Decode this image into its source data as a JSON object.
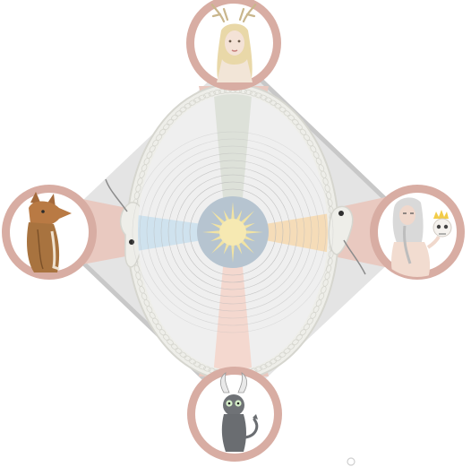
{
  "colors": {
    "background": "#ffffff",
    "diamond_fill": "#e4e4e4",
    "diamond_edge": "#c8c8c8",
    "ring_rose": "#d8ada3",
    "ring_rose_light": "#e9c9c0",
    "serpent_body": "#eeeee9",
    "serpent_scale": "#d6d6cf",
    "wheel_fill": "#efefef",
    "spoke_fill": "#f6f6f6",
    "top_wedge": "#dde1d9",
    "left_wedge": "#cfe2ee",
    "right_wedge": "#f5dcb8",
    "bottom_wedge": "#f4d8cf",
    "hub_blue": "#b6c4d0",
    "sun_gold": "#f1e3a3",
    "sun_core": "#f6e9b2",
    "concentric": "#b9b9b9"
  },
  "icons": {
    "top": "antlered-maiden-icon",
    "left": "fox-figure-icon",
    "right": "old-man-with-skull-icon",
    "bottom": "horned-cat-devil-icon",
    "center": "sun-icon"
  },
  "wheel": {
    "spokes": 4,
    "concentric_rings": 9,
    "sun_rays": 16
  }
}
